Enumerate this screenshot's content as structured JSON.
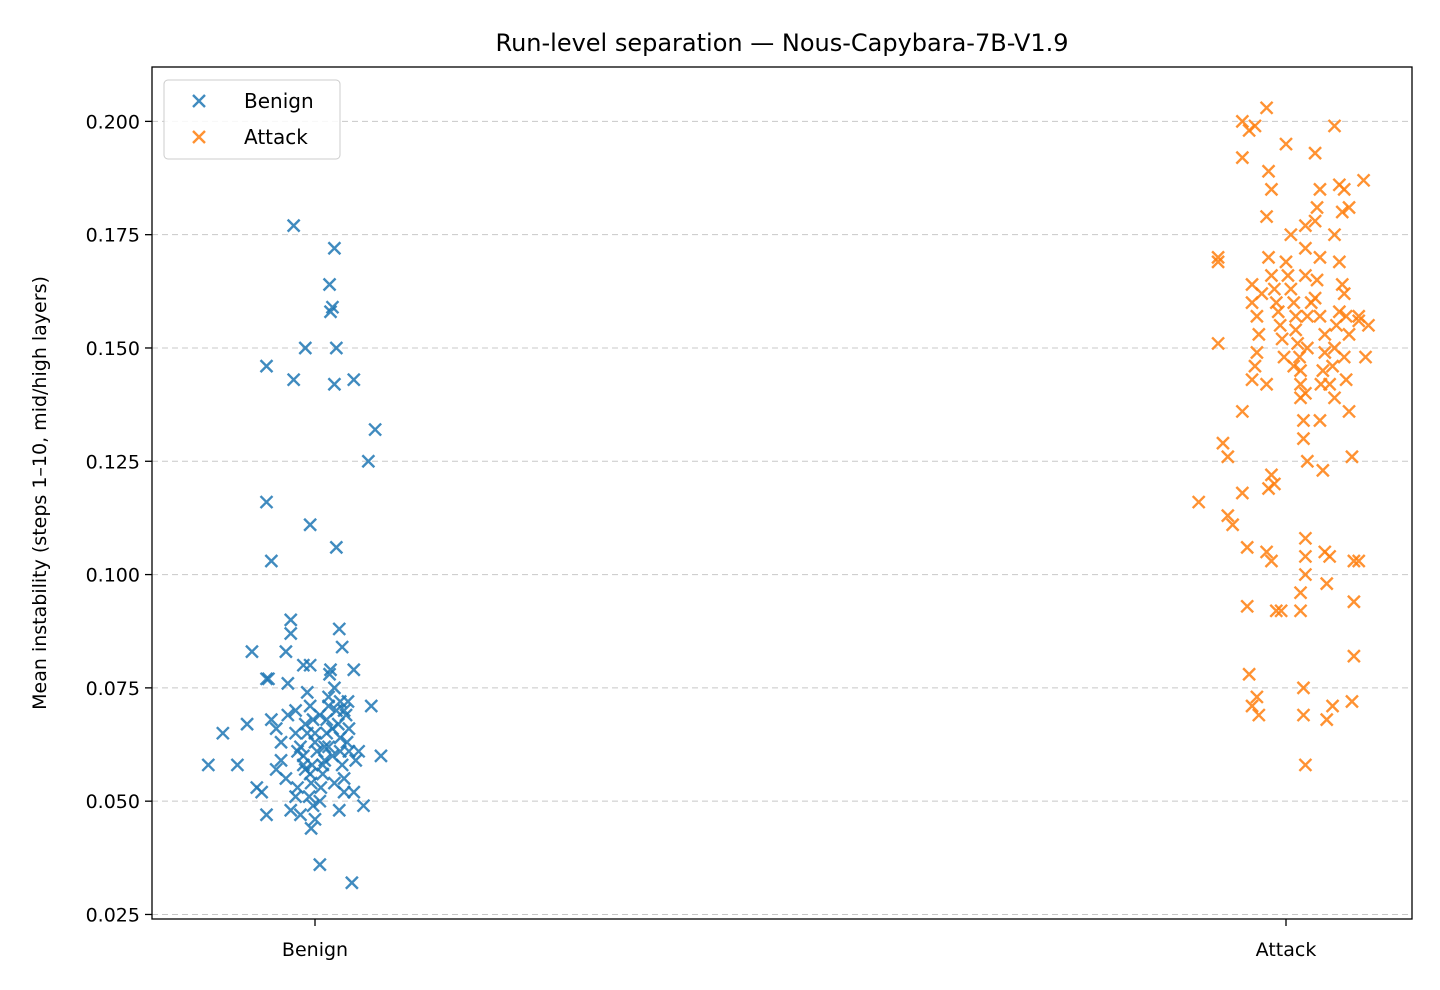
{
  "chart_data": {
    "type": "scatter",
    "title": "Run-level separation — Nous-Capybara-7B-V1.9",
    "xlabel": "",
    "ylabel": "Mean instability (steps 1–10, mid/high layers)",
    "categories": [
      "Benign",
      "Attack"
    ],
    "ylim": [
      0.024,
      0.212
    ],
    "yticks": [
      0.025,
      0.05,
      0.075,
      0.1,
      0.125,
      0.15,
      0.175,
      0.2
    ],
    "ytick_labels": [
      "0.025",
      "0.050",
      "0.075",
      "0.100",
      "0.125",
      "0.150",
      "0.175",
      "0.200"
    ],
    "grid": "horizontal-dashed",
    "legend_position": "top-left",
    "marker": "x",
    "series": [
      {
        "name": "Benign",
        "color": "#1f77b4",
        "points": [
          [
            -0.11,
            0.058
          ],
          [
            -0.08,
            0.058
          ],
          [
            -0.095,
            0.065
          ],
          [
            -0.07,
            0.067
          ],
          [
            -0.065,
            0.083
          ],
          [
            -0.05,
            0.077
          ],
          [
            -0.048,
            0.077
          ],
          [
            -0.05,
            0.146
          ],
          [
            -0.05,
            0.116
          ],
          [
            -0.045,
            0.103
          ],
          [
            -0.06,
            0.053
          ],
          [
            -0.055,
            0.052
          ],
          [
            -0.05,
            0.047
          ],
          [
            -0.045,
            0.068
          ],
          [
            -0.04,
            0.066
          ],
          [
            -0.035,
            0.059
          ],
          [
            -0.03,
            0.055
          ],
          [
            -0.025,
            0.048
          ],
          [
            -0.03,
            0.083
          ],
          [
            -0.025,
            0.087
          ],
          [
            -0.025,
            0.09
          ],
          [
            -0.022,
            0.143
          ],
          [
            -0.022,
            0.177
          ],
          [
            -0.01,
            0.15
          ],
          [
            -0.005,
            0.111
          ],
          [
            -0.02,
            0.07
          ],
          [
            -0.02,
            0.065
          ],
          [
            -0.015,
            0.062
          ],
          [
            -0.012,
            0.06
          ],
          [
            -0.01,
            0.057
          ],
          [
            -0.02,
            0.051
          ],
          [
            -0.018,
            0.053
          ],
          [
            -0.015,
            0.047
          ],
          [
            -0.028,
            0.069
          ],
          [
            -0.028,
            0.076
          ],
          [
            -0.012,
            0.08
          ],
          [
            -0.005,
            0.08
          ],
          [
            -0.008,
            0.074
          ],
          [
            -0.005,
            0.071
          ],
          [
            -0.002,
            0.068
          ],
          [
            0.0,
            0.065
          ],
          [
            0.0,
            0.063
          ],
          [
            0.002,
            0.061
          ],
          [
            -0.003,
            0.058
          ],
          [
            -0.005,
            0.056
          ],
          [
            -0.004,
            0.054
          ],
          [
            -0.006,
            0.051
          ],
          [
            -0.002,
            0.049
          ],
          [
            0.0,
            0.046
          ],
          [
            -0.004,
            0.044
          ],
          [
            0.005,
            0.036
          ],
          [
            0.005,
            0.05
          ],
          [
            0.006,
            0.053
          ],
          [
            0.008,
            0.056
          ],
          [
            0.01,
            0.059
          ],
          [
            0.01,
            0.062
          ],
          [
            0.012,
            0.065
          ],
          [
            0.012,
            0.068
          ],
          [
            0.014,
            0.071
          ],
          [
            0.014,
            0.073
          ],
          [
            0.015,
            0.078
          ],
          [
            0.016,
            0.079
          ],
          [
            0.015,
            0.164
          ],
          [
            0.016,
            0.158
          ],
          [
            0.018,
            0.159
          ],
          [
            0.02,
            0.172
          ],
          [
            0.022,
            0.15
          ],
          [
            0.02,
            0.142
          ],
          [
            0.022,
            0.106
          ],
          [
            0.025,
            0.088
          ],
          [
            0.028,
            0.084
          ],
          [
            0.02,
            0.075
          ],
          [
            0.022,
            0.07
          ],
          [
            0.024,
            0.067
          ],
          [
            0.026,
            0.064
          ],
          [
            0.026,
            0.061
          ],
          [
            0.028,
            0.058
          ],
          [
            0.03,
            0.055
          ],
          [
            0.03,
            0.052
          ],
          [
            0.025,
            0.048
          ],
          [
            0.032,
            0.069
          ],
          [
            0.034,
            0.072
          ],
          [
            0.035,
            0.061
          ],
          [
            0.038,
            0.032
          ],
          [
            0.04,
            0.143
          ],
          [
            0.04,
            0.079
          ],
          [
            0.042,
            0.059
          ],
          [
            0.04,
            0.052
          ],
          [
            0.045,
            0.061
          ],
          [
            0.05,
            0.049
          ],
          [
            0.055,
            0.125
          ],
          [
            0.058,
            0.071
          ],
          [
            0.062,
            0.132
          ],
          [
            0.068,
            0.06
          ],
          [
            0.018,
            0.066
          ],
          [
            0.014,
            0.062
          ],
          [
            0.008,
            0.058
          ],
          [
            -0.008,
            0.065
          ],
          [
            -0.018,
            0.061
          ],
          [
            -0.035,
            0.063
          ],
          [
            0.035,
            0.066
          ],
          [
            0.03,
            0.07
          ],
          [
            0.005,
            0.069
          ],
          [
            -0.012,
            0.058
          ],
          [
            0.02,
            0.054
          ],
          [
            0.018,
            0.06
          ],
          [
            0.026,
            0.072
          ],
          [
            -0.04,
            0.057
          ],
          [
            -0.01,
            0.067
          ],
          [
            0.033,
            0.063
          ]
        ]
      },
      {
        "name": "Attack",
        "color": "#ff7f0e",
        "points": [
          [
            -0.09,
            0.116
          ],
          [
            -0.07,
            0.151
          ],
          [
            -0.07,
            0.17
          ],
          [
            -0.065,
            0.129
          ],
          [
            -0.06,
            0.126
          ],
          [
            -0.06,
            0.113
          ],
          [
            -0.055,
            0.111
          ],
          [
            -0.07,
            0.169
          ],
          [
            -0.045,
            0.192
          ],
          [
            -0.045,
            0.2
          ],
          [
            -0.045,
            0.136
          ],
          [
            -0.045,
            0.118
          ],
          [
            -0.04,
            0.106
          ],
          [
            -0.04,
            0.093
          ],
          [
            -0.038,
            0.078
          ],
          [
            -0.035,
            0.071
          ],
          [
            -0.03,
            0.073
          ],
          [
            -0.028,
            0.069
          ],
          [
            -0.032,
            0.199
          ],
          [
            -0.038,
            0.198
          ],
          [
            -0.035,
            0.164
          ],
          [
            -0.035,
            0.16
          ],
          [
            -0.03,
            0.157
          ],
          [
            -0.028,
            0.153
          ],
          [
            -0.03,
            0.149
          ],
          [
            -0.032,
            0.146
          ],
          [
            -0.035,
            0.143
          ],
          [
            -0.02,
            0.203
          ],
          [
            -0.018,
            0.189
          ],
          [
            -0.015,
            0.185
          ],
          [
            -0.02,
            0.179
          ],
          [
            -0.018,
            0.17
          ],
          [
            -0.015,
            0.166
          ],
          [
            -0.012,
            0.163
          ],
          [
            -0.01,
            0.16
          ],
          [
            -0.008,
            0.158
          ],
          [
            -0.006,
            0.155
          ],
          [
            -0.004,
            0.152
          ],
          [
            -0.002,
            0.148
          ],
          [
            -0.02,
            0.142
          ],
          [
            -0.015,
            0.122
          ],
          [
            -0.012,
            0.12
          ],
          [
            -0.018,
            0.119
          ],
          [
            -0.02,
            0.105
          ],
          [
            -0.015,
            0.103
          ],
          [
            -0.01,
            0.092
          ],
          [
            -0.005,
            0.092
          ],
          [
            0.0,
            0.195
          ],
          [
            0.005,
            0.175
          ],
          [
            0.0,
            0.169
          ],
          [
            0.002,
            0.166
          ],
          [
            0.005,
            0.163
          ],
          [
            0.008,
            0.16
          ],
          [
            0.01,
            0.157
          ],
          [
            0.01,
            0.154
          ],
          [
            0.012,
            0.151
          ],
          [
            0.014,
            0.148
          ],
          [
            0.015,
            0.145
          ],
          [
            0.015,
            0.142
          ],
          [
            0.015,
            0.139
          ],
          [
            0.02,
            0.177
          ],
          [
            0.02,
            0.172
          ],
          [
            0.02,
            0.166
          ],
          [
            0.022,
            0.157
          ],
          [
            0.022,
            0.15
          ],
          [
            0.02,
            0.14
          ],
          [
            0.018,
            0.134
          ],
          [
            0.018,
            0.13
          ],
          [
            0.022,
            0.125
          ],
          [
            0.02,
            0.108
          ],
          [
            0.02,
            0.104
          ],
          [
            0.02,
            0.1
          ],
          [
            0.015,
            0.096
          ],
          [
            0.015,
            0.092
          ],
          [
            0.018,
            0.075
          ],
          [
            0.018,
            0.069
          ],
          [
            0.02,
            0.058
          ],
          [
            0.03,
            0.193
          ],
          [
            0.035,
            0.185
          ],
          [
            0.032,
            0.181
          ],
          [
            0.03,
            0.178
          ],
          [
            0.035,
            0.17
          ],
          [
            0.032,
            0.165
          ],
          [
            0.03,
            0.161
          ],
          [
            0.035,
            0.157
          ],
          [
            0.04,
            0.153
          ],
          [
            0.04,
            0.149
          ],
          [
            0.038,
            0.145
          ],
          [
            0.036,
            0.142
          ],
          [
            0.035,
            0.134
          ],
          [
            0.038,
            0.123
          ],
          [
            0.04,
            0.105
          ],
          [
            0.042,
            0.098
          ],
          [
            0.045,
            0.104
          ],
          [
            0.048,
            0.071
          ],
          [
            0.042,
            0.068
          ],
          [
            0.05,
            0.199
          ],
          [
            0.055,
            0.186
          ],
          [
            0.058,
            0.18
          ],
          [
            0.05,
            0.175
          ],
          [
            0.055,
            0.169
          ],
          [
            0.058,
            0.164
          ],
          [
            0.055,
            0.158
          ],
          [
            0.052,
            0.155
          ],
          [
            0.05,
            0.15
          ],
          [
            0.048,
            0.146
          ],
          [
            0.045,
            0.142
          ],
          [
            0.05,
            0.139
          ],
          [
            0.06,
            0.185
          ],
          [
            0.065,
            0.181
          ],
          [
            0.062,
            0.157
          ],
          [
            0.065,
            0.153
          ],
          [
            0.06,
            0.148
          ],
          [
            0.062,
            0.143
          ],
          [
            0.065,
            0.136
          ],
          [
            0.068,
            0.126
          ],
          [
            0.07,
            0.094
          ],
          [
            0.07,
            0.082
          ],
          [
            0.068,
            0.072
          ],
          [
            0.075,
            0.157
          ],
          [
            0.075,
            0.156
          ],
          [
            0.07,
            0.103
          ],
          [
            0.075,
            0.103
          ],
          [
            0.08,
            0.187
          ],
          [
            0.085,
            0.155
          ],
          [
            0.082,
            0.148
          ],
          [
            0.06,
            0.162
          ],
          [
            -0.025,
            0.162
          ],
          [
            0.008,
            0.146
          ],
          [
            0.026,
            0.16
          ]
        ]
      }
    ]
  }
}
